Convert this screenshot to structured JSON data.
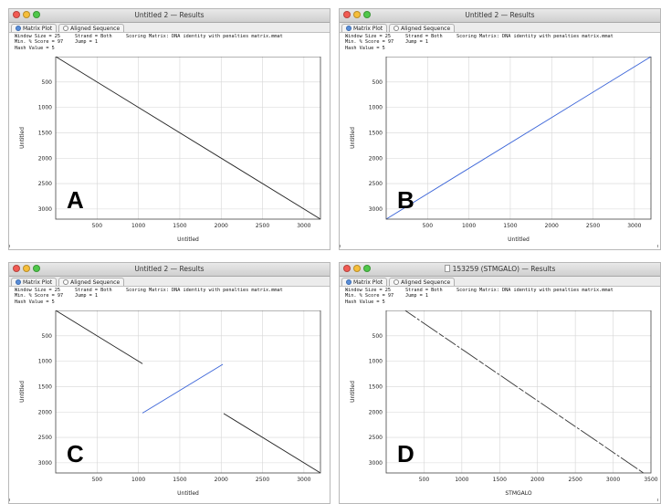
{
  "windows": [
    {
      "title": "Untitled 2 — Results",
      "tabs": [
        "Matrix Plot",
        "Aligned Sequence"
      ],
      "params": {
        "window_size": "Window Size = 25",
        "strand": "Strand = Both",
        "scoring": "Scoring Matrix: DNA identity with penalties matrix.mmat",
        "min_score": "Min. % Score = 97",
        "jump": "Jump = 1",
        "hash": "Hash Value = 5"
      },
      "panel_label": "A",
      "xlabel": "Untitled",
      "ylabel": "Untitled"
    },
    {
      "title": "Untitled 2 — Results",
      "tabs": [
        "Matrix Plot",
        "Aligned Sequence"
      ],
      "params": {
        "window_size": "Window Size = 25",
        "strand": "Strand = Both",
        "scoring": "Scoring Matrix: DNA identity with penalties matrix.mmat",
        "min_score": "Min. % Score = 97",
        "jump": "Jump = 1",
        "hash": "Hash Value = 5"
      },
      "panel_label": "B",
      "xlabel": "Untitled",
      "ylabel": "Untitled"
    },
    {
      "title": "Untitled 2 — Results",
      "tabs": [
        "Matrix Plot",
        "Aligned Sequence"
      ],
      "params": {
        "window_size": "Window Size = 25",
        "strand": "Strand = Both",
        "scoring": "Scoring Matrix: DNA identity with penalties matrix.mmat",
        "min_score": "Min. % Score = 97",
        "jump": "Jump = 1",
        "hash": "Hash Value = 5"
      },
      "panel_label": "C",
      "xlabel": "Untitled",
      "ylabel": "Untitled"
    },
    {
      "title": "153259 (STMGALO) — Results",
      "tabs": [
        "Matrix Plot",
        "Aligned Sequence"
      ],
      "params": {
        "window_size": "Window Size = 25",
        "strand": "Strand = Both",
        "scoring": "Scoring Matrix: DNA identity with penalties matrix.mmat",
        "min_score": "Min. % Score = 97",
        "jump": "Jump = 1",
        "hash": "Hash Value = 5"
      },
      "panel_label": "D",
      "xlabel": "STMGALO",
      "ylabel": "Untitled"
    }
  ],
  "colors": {
    "forward": "#222222",
    "reverse": "#3a64d8",
    "grid": "#d6d6d6",
    "dashed": "#333333"
  },
  "chart_data": [
    {
      "type": "line",
      "xlim": [
        0,
        3200
      ],
      "ylim": [
        0,
        3200
      ],
      "y_inverted": true,
      "xticks": [
        500,
        1000,
        1500,
        2000,
        2500,
        3000
      ],
      "yticks": [
        500,
        1000,
        1500,
        2000,
        2500,
        3000
      ],
      "grid": true,
      "series": [
        {
          "strand": "forward",
          "style": "solid",
          "x": [
            0,
            3200
          ],
          "y": [
            0,
            3200
          ]
        }
      ]
    },
    {
      "type": "line",
      "xlim": [
        0,
        3200
      ],
      "ylim": [
        0,
        3200
      ],
      "y_inverted": true,
      "xticks": [
        500,
        1000,
        1500,
        2000,
        2500,
        3000
      ],
      "yticks": [
        500,
        1000,
        1500,
        2000,
        2500,
        3000
      ],
      "grid": true,
      "series": [
        {
          "strand": "reverse",
          "style": "solid",
          "x": [
            0,
            3200
          ],
          "y": [
            3200,
            0
          ]
        }
      ]
    },
    {
      "type": "line",
      "xlim": [
        0,
        3200
      ],
      "ylim": [
        0,
        3200
      ],
      "y_inverted": true,
      "xticks": [
        500,
        1000,
        1500,
        2000,
        2500,
        3000
      ],
      "yticks": [
        500,
        1000,
        1500,
        2000,
        2500,
        3000
      ],
      "grid": true,
      "series": [
        {
          "strand": "forward",
          "style": "solid",
          "x": [
            0,
            1050
          ],
          "y": [
            0,
            1050
          ]
        },
        {
          "strand": "reverse",
          "style": "solid",
          "x": [
            1050,
            2020
          ],
          "y": [
            2020,
            1060
          ]
        },
        {
          "strand": "forward",
          "style": "solid",
          "x": [
            2030,
            3200
          ],
          "y": [
            2030,
            3200
          ]
        }
      ]
    },
    {
      "type": "line",
      "xlim": [
        0,
        3500
      ],
      "ylim": [
        0,
        3200
      ],
      "y_inverted": true,
      "xticks": [
        500,
        1000,
        1500,
        2000,
        2500,
        3000,
        3500
      ],
      "yticks": [
        500,
        1000,
        1500,
        2000,
        2500,
        3000
      ],
      "grid": true,
      "series": [
        {
          "strand": "forward",
          "style": "dashed",
          "x": [
            250,
            3400
          ],
          "y": [
            0,
            3200
          ]
        }
      ]
    }
  ]
}
